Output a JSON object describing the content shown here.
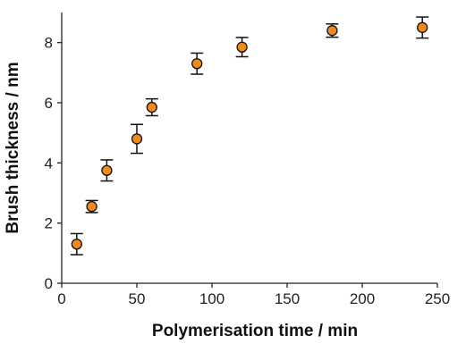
{
  "chart_data": {
    "type": "scatter",
    "title": "",
    "xlabel": "Polymerisation time / min",
    "ylabel": "Brush thickness / nm",
    "xlim": [
      0,
      250
    ],
    "ylim": [
      0,
      9
    ],
    "xticks": [
      0,
      50,
      100,
      150,
      200,
      250
    ],
    "yticks": [
      0,
      2,
      4,
      6,
      8
    ],
    "grid": false,
    "legend": "none",
    "marker_color": "#f28a1b",
    "marker_edge_color": "#111111",
    "errorbar_color": "#111111",
    "series": [
      {
        "x": [
          10,
          20,
          30,
          50,
          60,
          90,
          120,
          180,
          240
        ],
        "y": [
          1.3,
          2.55,
          3.75,
          4.8,
          5.85,
          7.3,
          7.85,
          8.4,
          8.5
        ],
        "yerr": [
          0.35,
          0.2,
          0.35,
          0.48,
          0.28,
          0.35,
          0.32,
          0.22,
          0.35
        ]
      }
    ]
  }
}
